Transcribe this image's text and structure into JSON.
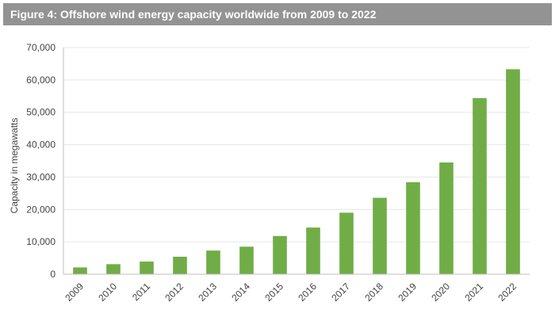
{
  "chart_data": {
    "type": "bar",
    "title": "Figure 4: Offshore wind energy capacity worldwide from 2009 to 2022",
    "xlabel": "",
    "ylabel": "Capacity in megawatts",
    "ylim": [
      0,
      70000
    ],
    "yticks": [
      0,
      10000,
      20000,
      30000,
      40000,
      50000,
      60000,
      70000
    ],
    "ytick_labels": [
      "0",
      "10,000",
      "20,000",
      "30,000",
      "40,000",
      "50,000",
      "60,000",
      "70,000"
    ],
    "grid": true,
    "bar_color": "#70ad47",
    "categories": [
      "2009",
      "2010",
      "2011",
      "2012",
      "2013",
      "2014",
      "2015",
      "2016",
      "2017",
      "2018",
      "2019",
      "2020",
      "2021",
      "2022"
    ],
    "values": [
      2100,
      3100,
      3900,
      5400,
      7300,
      8500,
      11800,
      14400,
      19000,
      23600,
      28400,
      34500,
      54400,
      63300
    ]
  }
}
